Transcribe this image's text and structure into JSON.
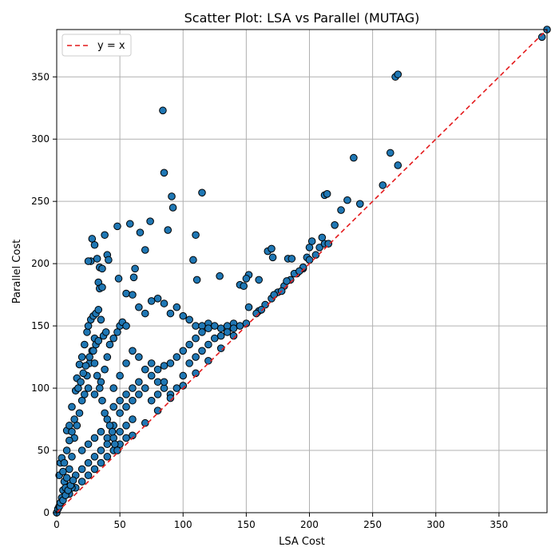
{
  "chart_data": {
    "type": "scatter",
    "title": "Scatter Plot: LSA vs Parallel (MUTAG)",
    "xlabel": "LSA Cost",
    "ylabel": "Parallel Cost",
    "xlim": [
      0,
      388
    ],
    "ylim": [
      0,
      388
    ],
    "xticks": [
      0,
      50,
      100,
      150,
      200,
      250,
      300,
      350
    ],
    "yticks": [
      0,
      50,
      100,
      150,
      200,
      250,
      300,
      350
    ],
    "grid": true,
    "legend_position": "top-left",
    "reference_line": {
      "label": "y = x",
      "color": "#e41a1c",
      "style": "dashed"
    },
    "marker_color": "#1f77b4",
    "marker_edge_color": "#000000",
    "series": [
      {
        "points": [
          [
            0,
            0
          ],
          [
            1,
            3
          ],
          [
            2,
            5
          ],
          [
            3,
            8
          ],
          [
            4,
            12
          ],
          [
            5,
            18
          ],
          [
            6,
            25
          ],
          [
            2,
            30
          ],
          [
            3,
            40
          ],
          [
            4,
            44
          ],
          [
            5,
            33
          ],
          [
            7,
            20
          ],
          [
            8,
            28
          ],
          [
            10,
            35
          ],
          [
            12,
            45
          ],
          [
            14,
            60
          ],
          [
            16,
            70
          ],
          [
            18,
            80
          ],
          [
            20,
            90
          ],
          [
            22,
            95
          ],
          [
            8,
            66
          ],
          [
            10,
            70
          ],
          [
            12,
            85
          ],
          [
            15,
            98
          ],
          [
            16,
            108
          ],
          [
            18,
            119
          ],
          [
            20,
            125
          ],
          [
            22,
            135
          ],
          [
            24,
            145
          ],
          [
            25,
            150
          ],
          [
            27,
            155
          ],
          [
            29,
            158
          ],
          [
            31,
            160
          ],
          [
            33,
            163
          ],
          [
            35,
            155
          ],
          [
            30,
            140
          ],
          [
            28,
            130
          ],
          [
            26,
            120
          ],
          [
            24,
            110
          ],
          [
            25,
            100
          ],
          [
            30,
            95
          ],
          [
            35,
            105
          ],
          [
            38,
            115
          ],
          [
            40,
            125
          ],
          [
            42,
            135
          ],
          [
            45,
            140
          ],
          [
            48,
            145
          ],
          [
            50,
            150
          ],
          [
            52,
            153
          ],
          [
            55,
            150
          ],
          [
            28,
            220
          ],
          [
            30,
            215
          ],
          [
            32,
            204
          ],
          [
            34,
            197
          ],
          [
            36,
            196
          ],
          [
            27,
            202
          ],
          [
            25,
            202
          ],
          [
            38,
            223
          ],
          [
            33,
            185
          ],
          [
            34,
            180
          ],
          [
            36,
            181
          ],
          [
            40,
            207
          ],
          [
            41,
            203
          ],
          [
            48,
            230
          ],
          [
            49,
            188
          ],
          [
            55,
            176
          ],
          [
            58,
            232
          ],
          [
            62,
            196
          ],
          [
            61,
            189
          ],
          [
            66,
            225
          ],
          [
            70,
            211
          ],
          [
            74,
            234
          ],
          [
            84,
            323
          ],
          [
            85,
            273
          ],
          [
            88,
            227
          ],
          [
            91,
            254
          ],
          [
            92,
            245
          ],
          [
            108,
            203
          ],
          [
            110,
            223
          ],
          [
            111,
            187
          ],
          [
            115,
            257
          ],
          [
            129,
            190
          ],
          [
            152,
            191
          ],
          [
            150,
            188
          ],
          [
            160,
            187
          ],
          [
            167,
            210
          ],
          [
            170,
            212
          ],
          [
            171,
            205
          ],
          [
            183,
            204
          ],
          [
            186,
            204
          ],
          [
            195,
            196
          ],
          [
            198,
            205
          ],
          [
            200,
            213
          ],
          [
            202,
            218
          ],
          [
            208,
            213
          ],
          [
            210,
            221
          ],
          [
            212,
            255
          ],
          [
            214,
            256
          ],
          [
            212,
            216
          ],
          [
            215,
            216
          ],
          [
            220,
            231
          ],
          [
            225,
            243
          ],
          [
            230,
            251
          ],
          [
            235,
            285
          ],
          [
            240,
            248
          ],
          [
            258,
            263
          ],
          [
            264,
            289
          ],
          [
            270,
            279
          ],
          [
            268,
            350
          ],
          [
            270,
            352
          ],
          [
            384,
            382
          ],
          [
            388,
            388
          ],
          [
            60,
            175
          ],
          [
            65,
            165
          ],
          [
            70,
            160
          ],
          [
            75,
            170
          ],
          [
            80,
            172
          ],
          [
            85,
            168
          ],
          [
            90,
            160
          ],
          [
            95,
            165
          ],
          [
            100,
            158
          ],
          [
            105,
            155
          ],
          [
            110,
            150
          ],
          [
            115,
            150
          ],
          [
            120,
            152
          ],
          [
            125,
            150
          ],
          [
            130,
            148
          ],
          [
            135,
            150
          ],
          [
            140,
            152
          ],
          [
            145,
            150
          ],
          [
            45,
            100
          ],
          [
            50,
            110
          ],
          [
            55,
            120
          ],
          [
            60,
            130
          ],
          [
            65,
            125
          ],
          [
            70,
            115
          ],
          [
            75,
            110
          ],
          [
            80,
            105
          ],
          [
            85,
            100
          ],
          [
            90,
            95
          ],
          [
            95,
            100
          ],
          [
            100,
            110
          ],
          [
            105,
            120
          ],
          [
            110,
            125
          ],
          [
            115,
            130
          ],
          [
            120,
            135
          ],
          [
            125,
            140
          ],
          [
            130,
            142
          ],
          [
            135,
            145
          ],
          [
            140,
            148
          ],
          [
            40,
            60
          ],
          [
            45,
            70
          ],
          [
            50,
            80
          ],
          [
            55,
            85
          ],
          [
            60,
            90
          ],
          [
            65,
            95
          ],
          [
            70,
            100
          ],
          [
            75,
            90
          ],
          [
            80,
            95
          ],
          [
            85,
            105
          ],
          [
            20,
            50
          ],
          [
            25,
            55
          ],
          [
            30,
            60
          ],
          [
            35,
            65
          ],
          [
            40,
            75
          ],
          [
            45,
            85
          ],
          [
            50,
            90
          ],
          [
            55,
            95
          ],
          [
            60,
            100
          ],
          [
            65,
            105
          ],
          [
            15,
            30
          ],
          [
            20,
            35
          ],
          [
            25,
            40
          ],
          [
            30,
            45
          ],
          [
            35,
            50
          ],
          [
            40,
            55
          ],
          [
            45,
            60
          ],
          [
            50,
            65
          ],
          [
            55,
            70
          ],
          [
            60,
            75
          ],
          [
            10,
            15
          ],
          [
            15,
            20
          ],
          [
            20,
            25
          ],
          [
            25,
            30
          ],
          [
            30,
            35
          ],
          [
            35,
            40
          ],
          [
            40,
            45
          ],
          [
            45,
            50
          ],
          [
            50,
            55
          ],
          [
            55,
            60
          ],
          [
            60,
            62
          ],
          [
            70,
            72
          ],
          [
            80,
            82
          ],
          [
            90,
            92
          ],
          [
            100,
            102
          ],
          [
            110,
            112
          ],
          [
            120,
            122
          ],
          [
            130,
            132
          ],
          [
            140,
            142
          ],
          [
            150,
            152
          ],
          [
            160,
            162
          ],
          [
            165,
            167
          ],
          [
            170,
            172
          ],
          [
            175,
            177
          ],
          [
            180,
            182
          ],
          [
            185,
            187
          ],
          [
            190,
            192
          ],
          [
            195,
            197
          ],
          [
            200,
            203
          ],
          [
            205,
            207
          ],
          [
            100,
            130
          ],
          [
            105,
            135
          ],
          [
            110,
            140
          ],
          [
            115,
            145
          ],
          [
            120,
            148
          ],
          [
            95,
            125
          ],
          [
            90,
            120
          ],
          [
            85,
            118
          ],
          [
            80,
            115
          ],
          [
            75,
            120
          ],
          [
            145,
            183
          ],
          [
            148,
            182
          ],
          [
            152,
            165
          ],
          [
            158,
            160
          ],
          [
            162,
            163
          ],
          [
            172,
            175
          ],
          [
            178,
            178
          ],
          [
            182,
            186
          ],
          [
            188,
            192
          ],
          [
            192,
            194
          ],
          [
            30,
            120
          ],
          [
            32,
            110
          ],
          [
            34,
            100
          ],
          [
            36,
            90
          ],
          [
            38,
            80
          ],
          [
            42,
            70
          ],
          [
            44,
            65
          ],
          [
            46,
            55
          ],
          [
            48,
            50
          ],
          [
            12,
            20
          ],
          [
            5,
            10
          ],
          [
            7,
            14
          ],
          [
            9,
            18
          ],
          [
            11,
            22
          ],
          [
            13,
            26
          ],
          [
            6,
            40
          ],
          [
            8,
            50
          ],
          [
            10,
            58
          ],
          [
            12,
            65
          ],
          [
            14,
            75
          ],
          [
            17,
            100
          ],
          [
            19,
            105
          ],
          [
            21,
            112
          ],
          [
            23,
            118
          ],
          [
            26,
            125
          ],
          [
            29,
            130
          ],
          [
            31,
            135
          ],
          [
            33,
            138
          ],
          [
            37,
            142
          ],
          [
            39,
            145
          ]
        ]
      }
    ]
  }
}
